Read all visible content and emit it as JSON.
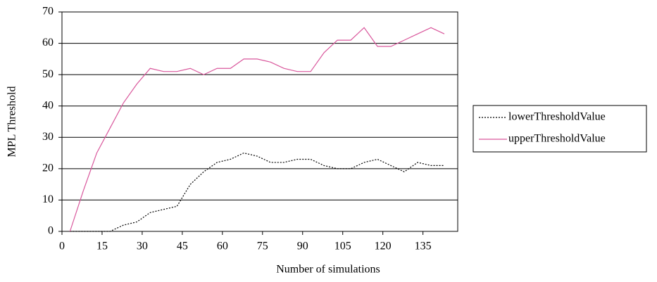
{
  "chart_data": {
    "type": "line",
    "x_label": "Number of simulations",
    "y_label": "MPL Threshold",
    "x": [
      3,
      8,
      13,
      18,
      23,
      28,
      33,
      38,
      43,
      48,
      53,
      58,
      63,
      68,
      73,
      78,
      83,
      88,
      93,
      98,
      103,
      108,
      113,
      118,
      123,
      128,
      133,
      138,
      143
    ],
    "series": [
      {
        "name": "lowerThresholdValue",
        "color": "#000000",
        "dash": "dotted",
        "values": [
          0,
          0,
          0,
          0,
          2,
          3,
          6,
          7,
          8,
          15,
          19,
          22,
          23,
          25,
          24,
          22,
          22,
          23,
          23,
          21,
          20,
          20,
          22,
          23,
          21,
          19,
          22,
          21,
          21
        ]
      },
      {
        "name": "upperThresholdValue",
        "color": "#d9579c",
        "dash": "solid",
        "values": [
          0,
          13,
          25,
          33,
          41,
          47,
          52,
          51,
          51,
          52,
          50,
          52,
          52,
          55,
          55,
          54,
          52,
          51,
          51,
          57,
          61,
          61,
          65,
          59,
          59,
          61,
          63,
          65,
          63
        ]
      }
    ],
    "xlim": [
      0,
      148
    ],
    "xticks": [
      0,
      15,
      30,
      45,
      60,
      75,
      90,
      105,
      120,
      135
    ],
    "ylim": [
      0,
      70
    ],
    "yticks": [
      0,
      10,
      20,
      30,
      40,
      50,
      60,
      70
    ],
    "grid": true,
    "legend": "right"
  }
}
